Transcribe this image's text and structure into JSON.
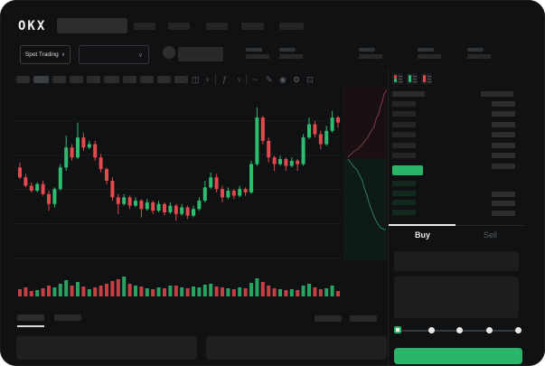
{
  "header": {
    "logo_text": "OKX",
    "nav_item_count": 5,
    "nav_positions": [
      148,
      186,
      228,
      267,
      309
    ],
    "nav_widths": [
      24,
      24,
      24,
      25,
      27
    ]
  },
  "market_bar": {
    "pair_selector_label": "Spot Trading",
    "chevron_glyph": "∨",
    "stat_positions": [
      272,
      309,
      397,
      462,
      517
    ]
  },
  "toolbar": {
    "timeframe_button_count": 10,
    "active_timeframe_index": 1,
    "icons": [
      {
        "name": "candle-type-icon",
        "glyph": "◫"
      },
      {
        "name": "chevron-down-icon",
        "glyph": "∨"
      },
      {
        "name": "indicators-icon",
        "glyph": "ƒ"
      },
      {
        "name": "chevron-down-icon",
        "glyph": "∨"
      },
      {
        "name": "line-tool-icon",
        "glyph": "~"
      },
      {
        "name": "draw-icon",
        "glyph": "✎"
      },
      {
        "name": "camera-icon",
        "glyph": "◉"
      },
      {
        "name": "settings-icon",
        "glyph": "⚙"
      },
      {
        "name": "fullscreen-icon",
        "glyph": "⊡"
      }
    ]
  },
  "order_book": {
    "layout_icons": [
      "book-both-icon",
      "book-bids-icon",
      "book-asks-icon"
    ],
    "ask_row_count": 6,
    "bid_row_count": 4,
    "last_price_highlight_color": "#2bb568"
  },
  "trade_panel": {
    "buy_label": "Buy",
    "sell_label": "Sell",
    "active_tab": "Buy",
    "slider_stop_count": 5,
    "slider_active_index": 0,
    "accent_green": "#2bb568"
  },
  "chart_data": {
    "type": "candlestick",
    "title": "",
    "xlabel": "",
    "ylabel": "",
    "ylim": [
      0,
      100
    ],
    "grid": true,
    "colors": {
      "up": "#2ebd70",
      "down": "#e4494f"
    },
    "candles_ohlc": [
      [
        58,
        61,
        51,
        52
      ],
      [
        52,
        54,
        46,
        47
      ],
      [
        47,
        49,
        43,
        44
      ],
      [
        44,
        49,
        43,
        48
      ],
      [
        48,
        50,
        41,
        42
      ],
      [
        42,
        44,
        32,
        36
      ],
      [
        36,
        46,
        34,
        45
      ],
      [
        45,
        60,
        44,
        58
      ],
      [
        58,
        77,
        56,
        70
      ],
      [
        70,
        72,
        62,
        64
      ],
      [
        64,
        85,
        63,
        76
      ],
      [
        76,
        79,
        68,
        70
      ],
      [
        70,
        74,
        69,
        72
      ],
      [
        72,
        74,
        62,
        64
      ],
      [
        64,
        66,
        55,
        57
      ],
      [
        57,
        58,
        48,
        50
      ],
      [
        50,
        52,
        38,
        40
      ],
      [
        40,
        42,
        30,
        36
      ],
      [
        36,
        42,
        35,
        40
      ],
      [
        40,
        41,
        33,
        35
      ],
      [
        35,
        40,
        34,
        38
      ],
      [
        38,
        39,
        28,
        33
      ],
      [
        33,
        39,
        32,
        37
      ],
      [
        37,
        38,
        30,
        32
      ],
      [
        32,
        38,
        31,
        36
      ],
      [
        36,
        37,
        29,
        31
      ],
      [
        31,
        37,
        30,
        35
      ],
      [
        35,
        36,
        26,
        30
      ],
      [
        30,
        36,
        29,
        34
      ],
      [
        34,
        35,
        27,
        29
      ],
      [
        29,
        35,
        28,
        33
      ],
      [
        33,
        40,
        32,
        38
      ],
      [
        38,
        50,
        37,
        46
      ],
      [
        46,
        55,
        45,
        52
      ],
      [
        52,
        54,
        43,
        45
      ],
      [
        45,
        47,
        37,
        40
      ],
      [
        40,
        46,
        39,
        44
      ],
      [
        44,
        45,
        39,
        41
      ],
      [
        41,
        47,
        40,
        45
      ],
      [
        45,
        46,
        41,
        43
      ],
      [
        43,
        62,
        42,
        60
      ],
      [
        60,
        94,
        59,
        88
      ],
      [
        88,
        89,
        72,
        74
      ],
      [
        74,
        76,
        61,
        64
      ],
      [
        64,
        65,
        56,
        60
      ],
      [
        60,
        65,
        59,
        63
      ],
      [
        63,
        64,
        56,
        59
      ],
      [
        59,
        64,
        58,
        62
      ],
      [
        62,
        63,
        56,
        60
      ],
      [
        60,
        78,
        59,
        76
      ],
      [
        76,
        88,
        75,
        84
      ],
      [
        84,
        86,
        76,
        78
      ],
      [
        78,
        80,
        69,
        72
      ],
      [
        72,
        83,
        71,
        80
      ],
      [
        80,
        92,
        79,
        88
      ],
      [
        88,
        89,
        82,
        85
      ]
    ],
    "volume": [
      8,
      10,
      6,
      7,
      9,
      12,
      10,
      14,
      18,
      12,
      16,
      11,
      8,
      10,
      12,
      14,
      17,
      19,
      22,
      14,
      12,
      11,
      9,
      8,
      10,
      9,
      12,
      12,
      10,
      9,
      11,
      10,
      13,
      14,
      11,
      10,
      9,
      8,
      10,
      9,
      15,
      20,
      16,
      12,
      9,
      8,
      7,
      8,
      7,
      12,
      14,
      10,
      8,
      9,
      12,
      6
    ],
    "depth": {
      "asks_line": [
        [
          48,
          2
        ],
        [
          44,
          8
        ],
        [
          42,
          16
        ],
        [
          40,
          22
        ],
        [
          38,
          30
        ],
        [
          35,
          36
        ],
        [
          33,
          44
        ],
        [
          29,
          50
        ],
        [
          26,
          56
        ],
        [
          21,
          62
        ],
        [
          16,
          68
        ],
        [
          10,
          72
        ],
        [
          6,
          76
        ],
        [
          4,
          78
        ]
      ],
      "bids_line": [
        [
          4,
          80
        ],
        [
          7,
          84
        ],
        [
          10,
          88
        ],
        [
          14,
          92
        ],
        [
          17,
          98
        ],
        [
          20,
          104
        ],
        [
          22,
          112
        ],
        [
          25,
          120
        ],
        [
          27,
          128
        ],
        [
          30,
          136
        ],
        [
          33,
          144
        ],
        [
          36,
          150
        ],
        [
          40,
          156
        ],
        [
          44,
          158
        ],
        [
          46,
          158
        ]
      ],
      "ask_fill_color": "#1a1013",
      "bid_fill_color": "#0e1a14",
      "ask_line_color": "#7a3e44",
      "bid_line_color": "#2f7d5f"
    }
  }
}
